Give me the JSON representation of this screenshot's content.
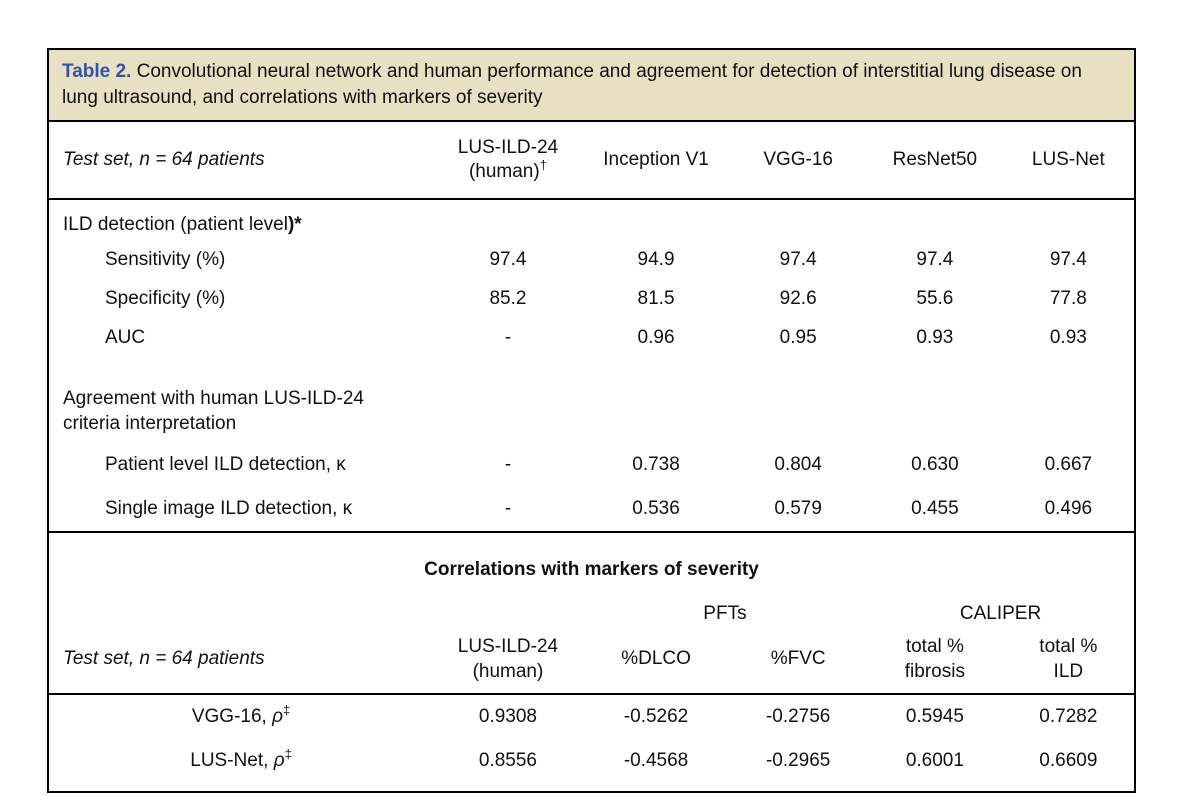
{
  "colors": {
    "caption_background": "#e8e0c2",
    "table_number_blue": "#3353a6",
    "border": "#000000"
  },
  "title": {
    "label": "Table 2.",
    "text": " Convolutional neural network and human performance and agreement for detection of interstitial lung disease on lung ultrasound, and correlations with markers of severity"
  },
  "top": {
    "row_header": "Test set, n = 64 patients",
    "col1_line1": "LUS-ILD-24",
    "col1_line2": "(human)",
    "col1_sup": "†",
    "col2": "Inception V1",
    "col3": "VGG-16",
    "col4": "ResNet50",
    "col5": "LUS-Net",
    "section1": {
      "heading": "ILD detection (patient level",
      "heading_bold": ")*",
      "rows": [
        {
          "label": "Sensitivity (%)",
          "values": [
            "97.4",
            "94.9",
            "97.4",
            "97.4",
            "97.4"
          ]
        },
        {
          "label": "Specificity (%)",
          "values": [
            "85.2",
            "81.5",
            "92.6",
            "55.6",
            "77.8"
          ]
        },
        {
          "label": "AUC",
          "values": [
            "-",
            "0.96",
            "0.95",
            "0.93",
            "0.93"
          ]
        }
      ]
    },
    "section2": {
      "heading_line1": "Agreement with human LUS-ILD-24",
      "heading_line2": "criteria interpretation",
      "rows": [
        {
          "label": "Patient level ILD detection,  κ",
          "values": [
            "-",
            "0.738",
            "0.804",
            "0.630",
            "0.667"
          ]
        },
        {
          "label": "Single image ILD detection,  κ",
          "values": [
            "-",
            "0.536",
            "0.579",
            "0.455",
            "0.496"
          ]
        }
      ]
    }
  },
  "correlations": {
    "section_title": "Correlations with markers of severity",
    "group_pfts": "PFTs",
    "group_caliper": "CALIPER",
    "row_header": "Test set, n = 64 patients",
    "col1_line1": "LUS-ILD-24",
    "col1_line2": "(human)",
    "col2": "%DLCO",
    "col3": "%FVC",
    "col4_line1": "total %",
    "col4_line2": "fibrosis",
    "col5_line1": "total %",
    "col5_line2": "ILD",
    "rows": [
      {
        "label_prefix": "VGG-16, ",
        "label_symbol": "ρ",
        "label_sup": "‡",
        "values": [
          "0.9308",
          "-0.5262",
          "-0.2756",
          "0.5945",
          "0.7282"
        ]
      },
      {
        "label_prefix": "LUS-Net, ",
        "label_symbol": "ρ",
        "label_sup": "‡",
        "values": [
          "0.8556",
          "-0.4568",
          "-0.2965",
          "0.6001",
          "0.6609"
        ]
      }
    ]
  }
}
